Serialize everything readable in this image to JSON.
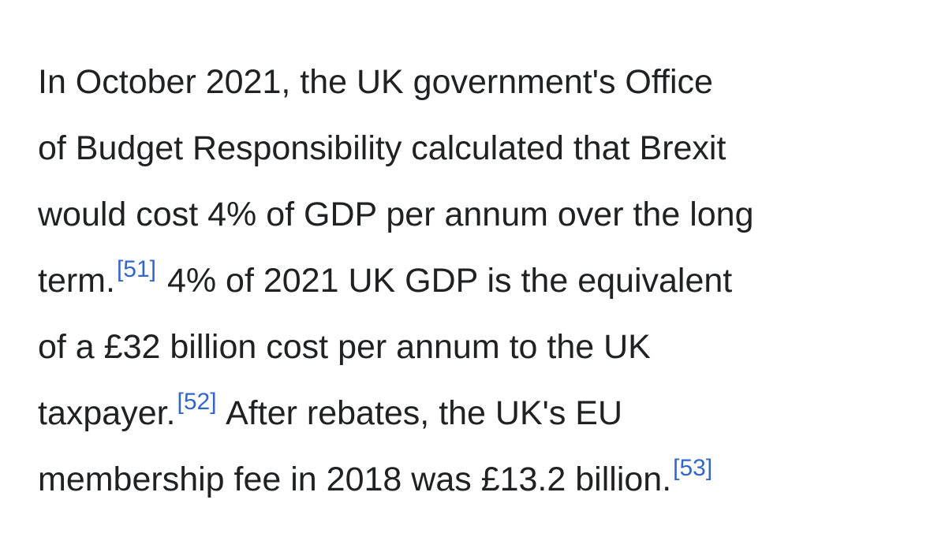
{
  "paragraph": {
    "line1": "In October 2021, the UK government's Office",
    "line2": "of Budget Responsibility calculated that Brexit",
    "line3": "would cost 4% of GDP per annum over the long",
    "line4_a": "term.",
    "cite1": "[51]",
    "line4_b": " 4% of 2021 UK GDP is the equivalent",
    "line5": "of a £32 billion cost per annum to the UK",
    "line6_a": "taxpayer.",
    "cite2": "[52]",
    "line6_b": " After rebates, the UK's EU",
    "line7_a": "membership fee in 2018 was £13.2 billion.",
    "cite3": "[53]"
  }
}
